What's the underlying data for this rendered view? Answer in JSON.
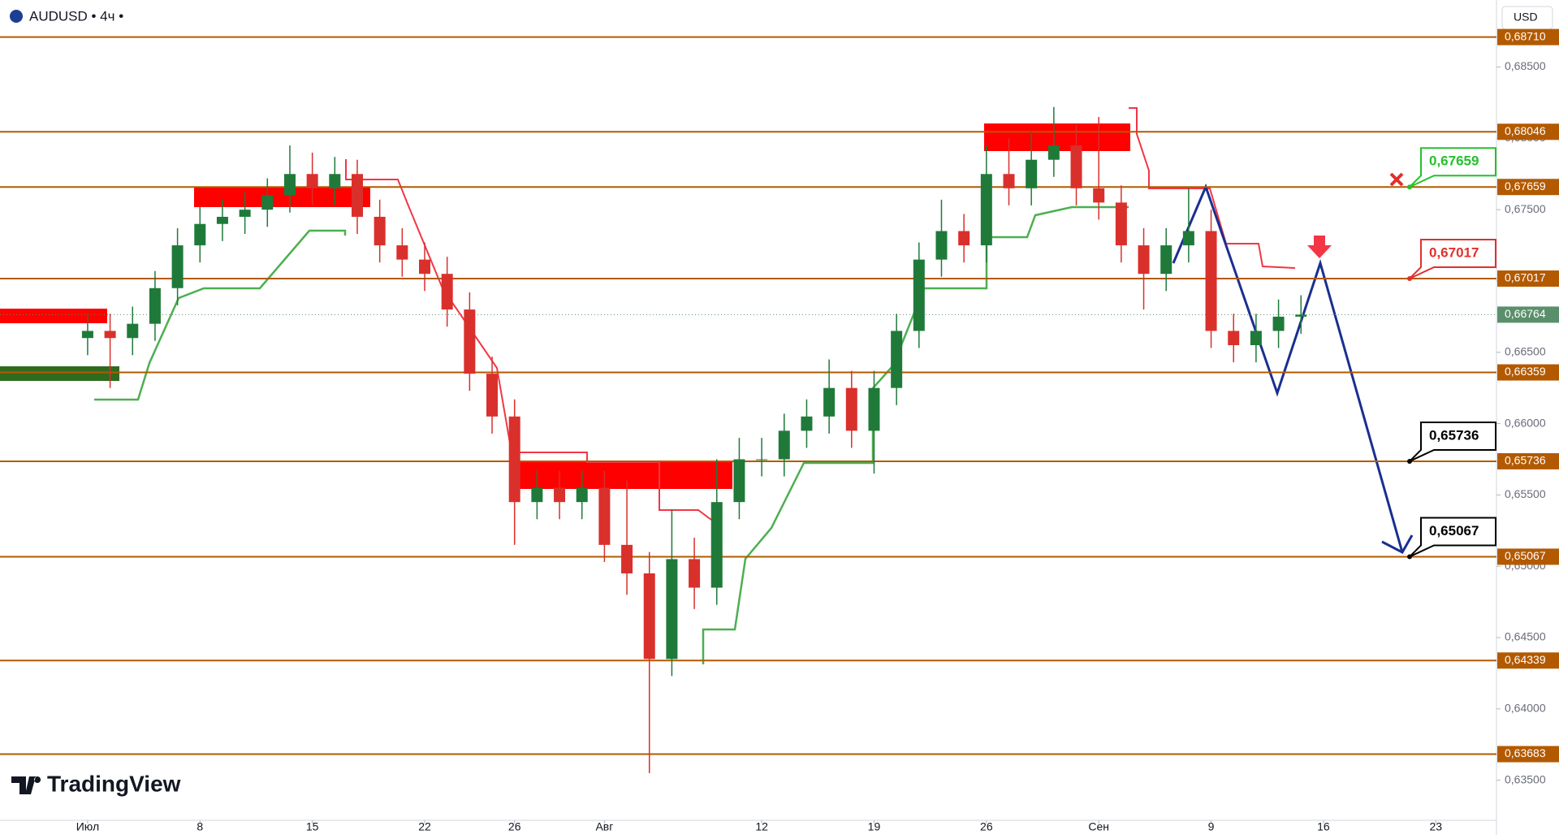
{
  "chart_data": {
    "type": "candlestick",
    "title": "AUDUSD • 4ч •",
    "currency": "USD",
    "brand": "TradingView",
    "up_color": "#1f7a3a",
    "down_color": "#d9302c",
    "level_color": "#b35a00",
    "ylim": [
      0.6331,
      0.6897
    ],
    "xlim": [
      -3.9,
      62.7
    ],
    "yticks": [
      {
        "value": 0.635,
        "label": "0,63500"
      },
      {
        "value": 0.64,
        "label": "0,64000"
      },
      {
        "value": 0.645,
        "label": "0,64500"
      },
      {
        "value": 0.65,
        "label": "0,65000"
      },
      {
        "value": 0.655,
        "label": "0,65500"
      },
      {
        "value": 0.66,
        "label": "0,66000"
      },
      {
        "value": 0.665,
        "label": "0,66500"
      },
      {
        "value": 0.67,
        "label": "0,67000"
      },
      {
        "value": 0.675,
        "label": "0,67500"
      },
      {
        "value": 0.68,
        "label": "0,68000"
      },
      {
        "value": 0.685,
        "label": "0,68500"
      }
    ],
    "xticks": [
      {
        "value": 0,
        "label": "Июл"
      },
      {
        "value": 5,
        "label": "8"
      },
      {
        "value": 10,
        "label": "15"
      },
      {
        "value": 15,
        "label": "22"
      },
      {
        "value": 19,
        "label": "26"
      },
      {
        "value": 23,
        "label": "Авг"
      },
      {
        "value": 30,
        "label": "12"
      },
      {
        "value": 35,
        "label": "19"
      },
      {
        "value": 40,
        "label": "26"
      },
      {
        "value": 45,
        "label": "Сен"
      },
      {
        "value": 50,
        "label": "9"
      },
      {
        "value": 55,
        "label": "16"
      },
      {
        "value": 60,
        "label": "23"
      }
    ],
    "levels": [
      {
        "value": 0.6871,
        "label": "0,68710"
      },
      {
        "value": 0.68046,
        "label": "0,68046"
      },
      {
        "value": 0.67659,
        "label": "0,67659"
      },
      {
        "value": 0.67017,
        "label": "0,67017"
      },
      {
        "value": 0.66359,
        "label": "0,66359"
      },
      {
        "value": 0.65736,
        "label": "0,65736"
      },
      {
        "value": 0.65067,
        "label": "0,65067"
      },
      {
        "value": 0.64339,
        "label": "0,64339"
      },
      {
        "value": 0.63683,
        "label": "0,63683"
      }
    ],
    "last_price": {
      "value": 0.66764,
      "label": "0,66764",
      "color": "#5b8f6c"
    },
    "callouts": [
      {
        "value": 0.67659,
        "label": "0,67659",
        "color": "#22c22a"
      },
      {
        "value": 0.67017,
        "label": "0,67017",
        "color": "#e0302c"
      },
      {
        "value": 0.65736,
        "label": "0,65736",
        "color": "#000000"
      },
      {
        "value": 0.65067,
        "label": "0,65067",
        "color": "#000000"
      }
    ],
    "open": [
      0.666,
      0.6665,
      0.666,
      0.667,
      0.6695,
      0.6725,
      0.674,
      0.6745,
      0.675,
      0.676,
      0.6775,
      0.6765,
      0.6775,
      0.6745,
      0.6725,
      0.6715,
      0.6705,
      0.668,
      0.6635,
      0.6605,
      0.6545,
      0.6555,
      0.6545,
      0.6555,
      0.6515,
      0.6495,
      0.6435,
      0.6505,
      0.6485,
      0.6545,
      0.6575,
      0.6575,
      0.6595,
      0.6605,
      0.6625,
      0.6595,
      0.6625,
      0.6665,
      0.6715,
      0.6735,
      0.6725,
      0.6775,
      0.6765,
      0.6785,
      0.6795,
      0.6765,
      0.6755,
      0.6725,
      0.6705,
      0.6725,
      0.6735,
      0.6665,
      0.6655,
      0.6665,
      0.6675
    ],
    "high": [
      0.6677,
      0.6677,
      0.6682,
      0.6707,
      0.6737,
      0.6752,
      0.6757,
      0.6762,
      0.6772,
      0.6795,
      0.679,
      0.6787,
      0.6785,
      0.6757,
      0.6737,
      0.6727,
      0.6717,
      0.6692,
      0.6647,
      0.6617,
      0.6567,
      0.6567,
      0.6567,
      0.6567,
      0.656,
      0.651,
      0.654,
      0.652,
      0.6575,
      0.659,
      0.659,
      0.6607,
      0.6617,
      0.6645,
      0.6637,
      0.6637,
      0.6677,
      0.6727,
      0.6757,
      0.6747,
      0.6795,
      0.68,
      0.6805,
      0.6822,
      0.681,
      0.6815,
      0.6767,
      0.6737,
      0.6737,
      0.6765,
      0.675,
      0.6677,
      0.6677,
      0.6687,
      0.669
    ],
    "low": [
      0.6648,
      0.6625,
      0.6648,
      0.6658,
      0.6683,
      0.6713,
      0.6728,
      0.6733,
      0.6738,
      0.6748,
      0.6753,
      0.6753,
      0.6733,
      0.6713,
      0.6703,
      0.6693,
      0.6668,
      0.6623,
      0.6593,
      0.6515,
      0.6533,
      0.6533,
      0.6533,
      0.6503,
      0.648,
      0.6355,
      0.6423,
      0.647,
      0.6473,
      0.6533,
      0.6563,
      0.6563,
      0.6583,
      0.6593,
      0.6583,
      0.6565,
      0.6613,
      0.6653,
      0.6703,
      0.6713,
      0.6713,
      0.6753,
      0.6753,
      0.6773,
      0.6753,
      0.6743,
      0.6713,
      0.668,
      0.6693,
      0.6713,
      0.6653,
      0.6643,
      0.6643,
      0.6653,
      0.6663
    ],
    "close": [
      0.6665,
      0.666,
      0.667,
      0.6695,
      0.6725,
      0.674,
      0.6745,
      0.675,
      0.676,
      0.6775,
      0.6765,
      0.6775,
      0.6745,
      0.6725,
      0.6715,
      0.6705,
      0.668,
      0.6635,
      0.6605,
      0.6545,
      0.6555,
      0.6545,
      0.6555,
      0.6515,
      0.6495,
      0.6435,
      0.6505,
      0.6485,
      0.6545,
      0.6575,
      0.6575,
      0.6595,
      0.6605,
      0.6625,
      0.6595,
      0.6625,
      0.6665,
      0.6715,
      0.6735,
      0.6725,
      0.6775,
      0.6765,
      0.6785,
      0.6795,
      0.6765,
      0.6755,
      0.6725,
      0.6705,
      0.6725,
      0.6735,
      0.6665,
      0.6655,
      0.6665,
      0.6675,
      0.66764
    ]
  }
}
